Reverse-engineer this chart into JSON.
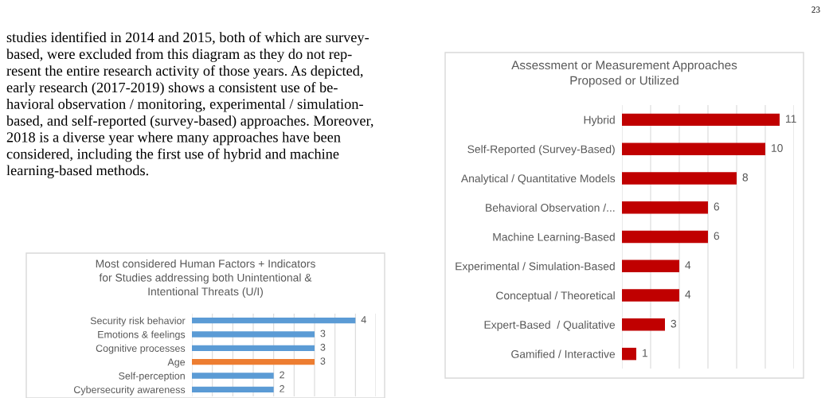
{
  "chart_data": [
    {
      "type": "other",
      "annotations": [
        "23",
        "studies identified in 2014 and 2015, both of which are survey-\nbased, were excluded from this diagram as they do not rep-\nresent the entire research activity of those years. As depicted,\nearly research (2017-2019) shows a consistent use of be-\nhavioral observation / monitoring, experimental / simulation-\nbased, and self-reported (survey-based) approaches. Moreover,\n2018 is a diverse year where many approaches have been\nconsidered, including the first use of hybrid and machine\nlearning-based methods."
      ]
    },
    {
      "type": "bar",
      "orientation": "horizontal",
      "title": "Most considered Human Factors + Indicators\nfor Studies addressing both Unintentional &\nIntentional Threats (U/I)",
      "categories": [
        "Security risk behavior",
        "Emotions & feelings",
        "Cognitive processes",
        "Age",
        "Self-perception",
        "Cybersecurity awareness"
      ],
      "values": [
        4,
        3,
        3,
        3,
        2,
        2
      ],
      "colors": [
        "#5b9bd5",
        "#5b9bd5",
        "#5b9bd5",
        "#ed7d31",
        "#5b9bd5",
        "#5b9bd5"
      ],
      "xlim": [
        0,
        4.5
      ],
      "xticks": [
        {
          "value": 0,
          "label": null
        },
        {
          "value": 0.5,
          "label": null
        },
        {
          "value": 1,
          "label": null
        },
        {
          "value": 1.5,
          "label": null
        },
        {
          "value": 2,
          "label": null
        },
        {
          "value": 2.5,
          "label": null
        },
        {
          "value": 3,
          "label": null
        },
        {
          "value": 3.5,
          "label": null
        },
        {
          "value": 4,
          "label": null
        },
        {
          "value": 4.5,
          "label": null
        }
      ],
      "grid": "x",
      "data_labels": true,
      "tick_labels": "y",
      "legend": false
    },
    {
      "type": "bar",
      "orientation": "horizontal",
      "title": "Assessment or Measurement Approaches\nProposed or Utilized",
      "categories": [
        "Hybrid",
        "Self-Reported (Survey-Based)",
        "Analytical / Quantitative Models",
        "Behavioral Observation /...",
        "Machine Learning-Based",
        "Experimental / Simulation-Based",
        "Conceptual / Theoretical",
        "Expert-Based  / Qualitative",
        "Gamified / Interactive"
      ],
      "values": [
        11,
        10,
        8,
        6,
        6,
        4,
        4,
        3,
        1
      ],
      "colors": [
        "#c00000",
        "#c00000",
        "#c00000",
        "#c00000",
        "#c00000",
        "#c00000",
        "#c00000",
        "#c00000",
        "#c00000"
      ],
      "xlim": [
        0,
        12
      ],
      "xticks": [
        {
          "value": 0,
          "label": null
        },
        {
          "value": 2,
          "label": null
        },
        {
          "value": 4,
          "label": null
        },
        {
          "value": 6,
          "label": null
        },
        {
          "value": 8,
          "label": null
        },
        {
          "value": 10,
          "label": null
        },
        {
          "value": 12,
          "label": null
        }
      ],
      "grid": "x",
      "data_labels": true,
      "tick_labels": "y",
      "legend": false
    }
  ]
}
